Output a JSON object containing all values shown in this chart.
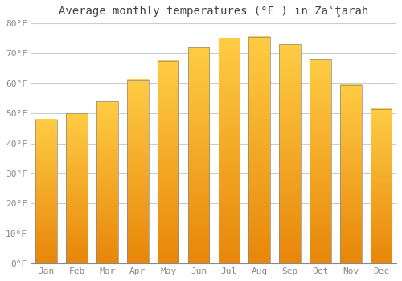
{
  "title": "Average monthly temperatures (°F ) in Zaʿţarah",
  "months": [
    "Jan",
    "Feb",
    "Mar",
    "Apr",
    "May",
    "Jun",
    "Jul",
    "Aug",
    "Sep",
    "Oct",
    "Nov",
    "Dec"
  ],
  "values": [
    48,
    50,
    54,
    61,
    67.5,
    72,
    75,
    75.5,
    73,
    68,
    59.5,
    51.5
  ],
  "ylim": [
    0,
    80
  ],
  "yticks": [
    0,
    10,
    20,
    30,
    40,
    50,
    60,
    70,
    80
  ],
  "ytick_labels": [
    "0°F",
    "10°F",
    "20°F",
    "30°F",
    "40°F",
    "50°F",
    "60°F",
    "70°F",
    "80°F"
  ],
  "bar_color_bottom": "#E8870A",
  "bar_color_top": "#FFCC44",
  "bar_edge_color": "#888888",
  "background_color": "#ffffff",
  "grid_color": "#cccccc",
  "title_fontsize": 10,
  "tick_fontsize": 8,
  "bar_width": 0.7,
  "tick_color": "#888888"
}
